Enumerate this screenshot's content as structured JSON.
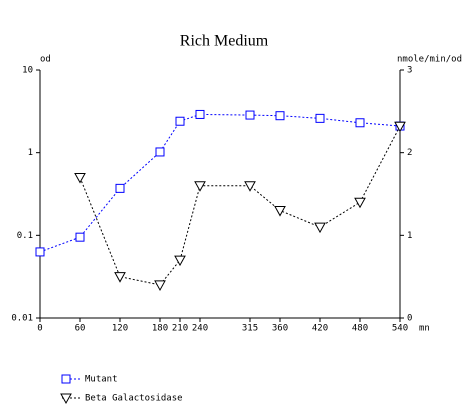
{
  "chart_data": {
    "type": "line",
    "title": "Rich Medium",
    "xlabel": "mn",
    "ylabel": "od",
    "y2label": "nmole/min/od",
    "x": [
      0,
      60,
      120,
      180,
      210,
      240,
      315,
      360,
      420,
      480,
      540
    ],
    "xlim": [
      0,
      540
    ],
    "xticks": [
      0,
      60,
      120,
      180,
      210,
      240,
      315,
      360,
      420,
      480,
      540
    ],
    "ylim": [
      0.01,
      10
    ],
    "yticks": [
      0.01,
      0.1,
      1,
      10
    ],
    "yscale": "log",
    "y2lim": [
      0,
      3
    ],
    "y2ticks": [
      0,
      1,
      2,
      3
    ],
    "series": [
      {
        "name": "Mutant",
        "color": "#0000ff",
        "marker": "square",
        "values": [
          0.063,
          0.095,
          0.37,
          1.02,
          2.4,
          2.9,
          2.85,
          2.8,
          2.6,
          2.3,
          2.1
        ]
      },
      {
        "name": "Beta Galactosidase",
        "color": "#000000",
        "marker": "triangle-down",
        "axis": "y2",
        "values": [
          null,
          1.7,
          0.5,
          0.4,
          0.7,
          1.6,
          1.6,
          1.3,
          1.1,
          1.4,
          2.32
        ]
      }
    ]
  }
}
